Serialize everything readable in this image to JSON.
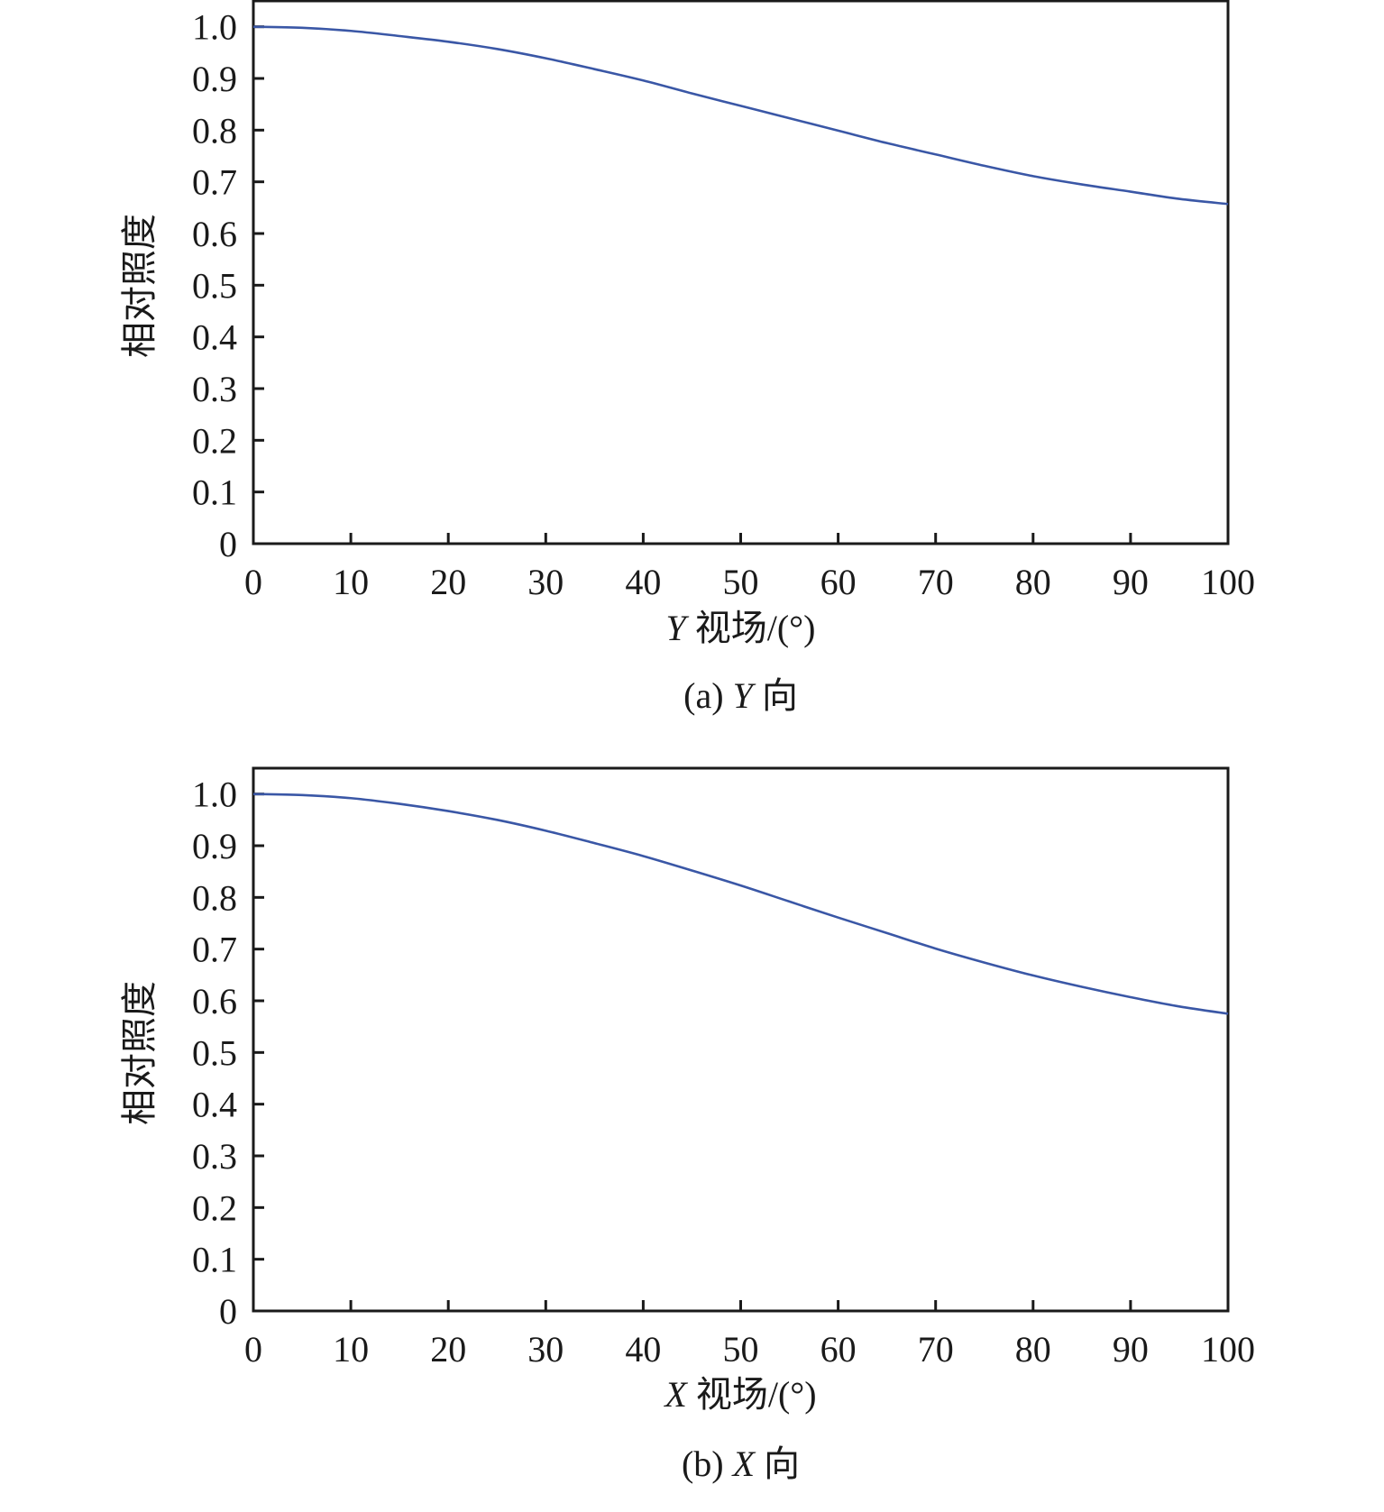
{
  "line_color": "#3a57a6",
  "chart_data": [
    {
      "type": "line",
      "caption": {
        "prefix": "(a) ",
        "axis": "Y",
        "suffix": " 向"
      },
      "xlabel": {
        "axis": "Y",
        "text": " 视场/(°)"
      },
      "ylabel": "相对照度",
      "xlim": [
        0,
        100
      ],
      "ylim": [
        0,
        1.05
      ],
      "xticks": [
        "0",
        "10",
        "20",
        "30",
        "40",
        "50",
        "60",
        "70",
        "80",
        "90",
        "100"
      ],
      "yticks": [
        "0",
        "0.1",
        "0.2",
        "0.3",
        "0.4",
        "0.5",
        "0.6",
        "0.7",
        "0.8",
        "0.9",
        "1.0"
      ],
      "grid": false,
      "series": [
        {
          "x": [
            0,
            5,
            10,
            15,
            20,
            25,
            30,
            35,
            40,
            45,
            50,
            55,
            60,
            65,
            70,
            75,
            80,
            85,
            90,
            95,
            100
          ],
          "y": [
            1.0,
            0.998,
            0.992,
            0.982,
            0.971,
            0.957,
            0.939,
            0.918,
            0.896,
            0.871,
            0.847,
            0.823,
            0.799,
            0.775,
            0.753,
            0.731,
            0.711,
            0.695,
            0.681,
            0.667,
            0.657
          ]
        }
      ]
    },
    {
      "type": "line",
      "caption": {
        "prefix": "(b) ",
        "axis": "X",
        "suffix": " 向"
      },
      "xlabel": {
        "axis": "X",
        "text": " 视场/(°)"
      },
      "ylabel": "相对照度",
      "xlim": [
        0,
        100
      ],
      "ylim": [
        0,
        1.05
      ],
      "xticks": [
        "0",
        "10",
        "20",
        "30",
        "40",
        "50",
        "60",
        "70",
        "80",
        "90",
        "100"
      ],
      "yticks": [
        "0",
        "0.1",
        "0.2",
        "0.3",
        "0.4",
        "0.5",
        "0.6",
        "0.7",
        "0.8",
        "0.9",
        "1.0"
      ],
      "grid": false,
      "series": [
        {
          "x": [
            0,
            5,
            10,
            15,
            20,
            25,
            30,
            35,
            40,
            45,
            50,
            55,
            60,
            65,
            70,
            75,
            80,
            85,
            90,
            95,
            100
          ],
          "y": [
            1.0,
            0.998,
            0.992,
            0.981,
            0.967,
            0.95,
            0.929,
            0.905,
            0.88,
            0.852,
            0.823,
            0.792,
            0.761,
            0.731,
            0.701,
            0.674,
            0.649,
            0.627,
            0.607,
            0.589,
            0.575
          ]
        }
      ]
    }
  ]
}
